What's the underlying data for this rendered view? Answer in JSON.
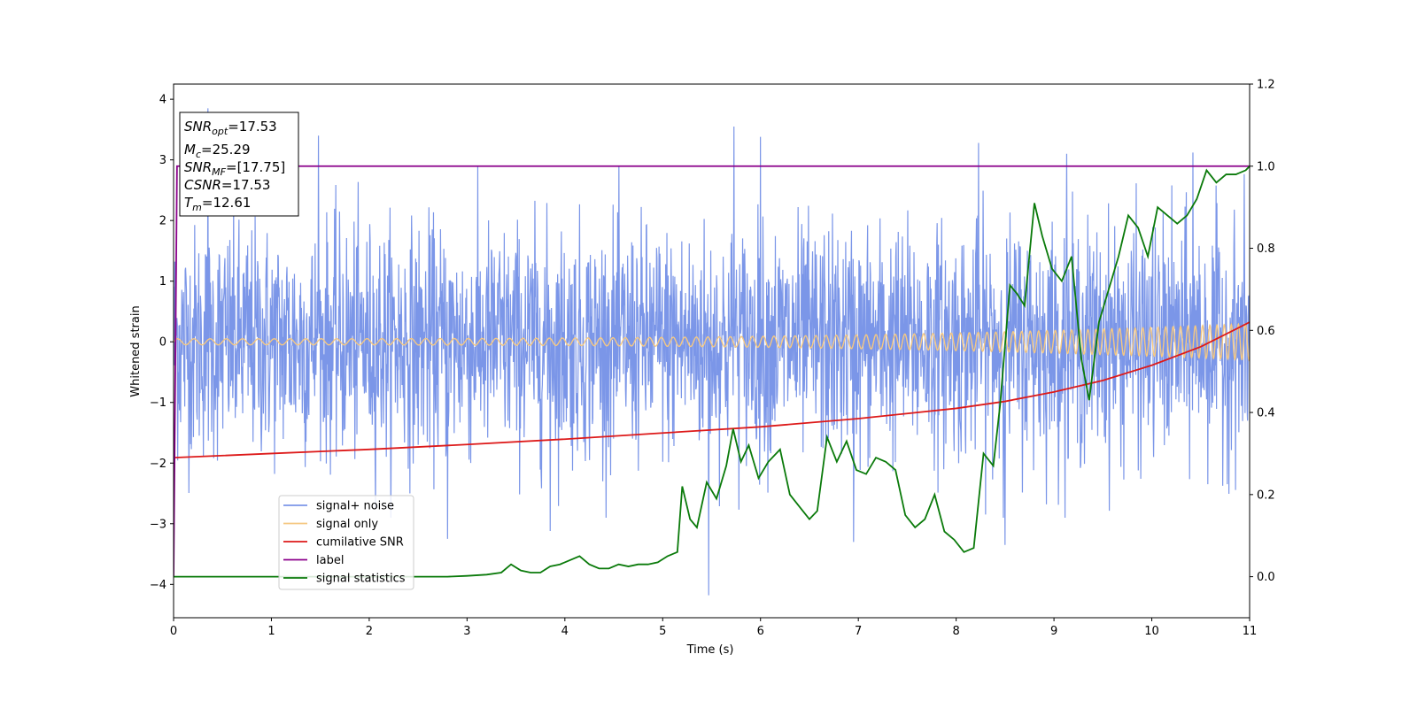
{
  "chart_data": {
    "type": "line",
    "title": "",
    "xlabel": "Time (s)",
    "ylabel": "Whitened strain",
    "ylabel_right": "",
    "xlim": [
      0,
      11
    ],
    "ylim": [
      -4.55,
      4.25
    ],
    "ylim_right": [
      -0.1,
      1.2
    ],
    "x_ticks": [
      "0",
      "1",
      "2",
      "3",
      "4",
      "5",
      "6",
      "7",
      "8",
      "9",
      "10",
      "11"
    ],
    "y_ticks": [
      "−4",
      "−3",
      "−2",
      "−1",
      "0",
      "1",
      "2",
      "3",
      "4"
    ],
    "y_ticks_right": [
      "0.0",
      "0.2",
      "0.4",
      "0.6",
      "0.8",
      "1.0",
      "1.2"
    ],
    "grid": false,
    "legend_position": "lower-left",
    "annotation": {
      "lines": [
        {
          "label": "SNR",
          "sub": "opt",
          "value": "=17.53"
        },
        {
          "label": "M",
          "sub": "c",
          "value": "=25.29"
        },
        {
          "label": "SNR",
          "sub": "MF",
          "value": "=[17.75]"
        },
        {
          "label": "CSNR",
          "sub": "",
          "value": "=17.53"
        },
        {
          "label": "T",
          "sub": "m",
          "value": "=12.61"
        }
      ]
    },
    "series": [
      {
        "name": "signal+ noise",
        "color": "#7b96e8",
        "axis": "left",
        "sampled": "noisy whitened strain, roughly ±2.5 with spikes up to ~3.9 and down to ~-4.2",
        "spikes": [
          [
            0.35,
            3.85
          ],
          [
            1.48,
            3.4
          ],
          [
            5.73,
            3.55
          ],
          [
            6.0,
            3.38
          ],
          [
            8.23,
            3.28
          ],
          [
            9.13,
            3.1
          ],
          [
            10.42,
            3.12
          ],
          [
            5.47,
            -4.18
          ],
          [
            2.8,
            -3.25
          ],
          [
            6.95,
            -3.3
          ],
          [
            3.85,
            -3.12
          ],
          [
            8.5,
            -3.35
          ]
        ]
      },
      {
        "name": "signal only",
        "color": "#f5c882",
        "axis": "left",
        "sampled": "chirp oscillation around 0, amplitude growing from ~0.05 to ~0.3"
      },
      {
        "name": "cumilative SNR",
        "color": "#dd1a1a",
        "axis": "right",
        "x": [
          0,
          1,
          2,
          3,
          4,
          5,
          6,
          7,
          8,
          8.5,
          9,
          9.5,
          10,
          10.5,
          11
        ],
        "y": [
          0.29,
          0.3,
          0.31,
          0.322,
          0.335,
          0.35,
          0.365,
          0.385,
          0.41,
          0.427,
          0.45,
          0.478,
          0.515,
          0.56,
          0.62
        ]
      },
      {
        "name": "label",
        "color": "#8b008b",
        "axis": "right",
        "x": [
          0.0,
          0.035,
          11
        ],
        "y": [
          0.0,
          1.0,
          1.0
        ]
      },
      {
        "name": "signal statistics",
        "color": "#0a7a0a",
        "axis": "right",
        "x": [
          0,
          0.5,
          1,
          1.5,
          2,
          2.5,
          2.8,
          3,
          3.2,
          3.35,
          3.45,
          3.55,
          3.65,
          3.75,
          3.85,
          3.95,
          4.05,
          4.15,
          4.25,
          4.35,
          4.45,
          4.55,
          4.65,
          4.75,
          4.85,
          4.95,
          5.05,
          5.15,
          5.2,
          5.28,
          5.35,
          5.45,
          5.55,
          5.65,
          5.72,
          5.8,
          5.88,
          5.98,
          6.08,
          6.2,
          6.3,
          6.4,
          6.5,
          6.58,
          6.68,
          6.78,
          6.88,
          6.98,
          7.08,
          7.18,
          7.28,
          7.38,
          7.48,
          7.58,
          7.68,
          7.78,
          7.88,
          7.98,
          8.08,
          8.18,
          8.28,
          8.38,
          8.45,
          8.55,
          8.62,
          8.7,
          8.8,
          8.88,
          8.98,
          9.08,
          9.18,
          9.28,
          9.36,
          9.46,
          9.56,
          9.66,
          9.76,
          9.86,
          9.96,
          10.06,
          10.16,
          10.26,
          10.36,
          10.46,
          10.56,
          10.66,
          10.76,
          10.86,
          10.96,
          11
        ],
        "y": [
          0.0,
          0.0,
          0.0,
          0.0,
          0.0,
          0.0,
          0.0,
          0.002,
          0.005,
          0.01,
          0.03,
          0.015,
          0.01,
          0.01,
          0.025,
          0.03,
          0.04,
          0.05,
          0.03,
          0.02,
          0.02,
          0.03,
          0.025,
          0.03,
          0.03,
          0.035,
          0.05,
          0.06,
          0.22,
          0.14,
          0.12,
          0.23,
          0.19,
          0.27,
          0.36,
          0.28,
          0.32,
          0.24,
          0.28,
          0.31,
          0.2,
          0.17,
          0.14,
          0.16,
          0.34,
          0.28,
          0.33,
          0.26,
          0.25,
          0.29,
          0.28,
          0.26,
          0.15,
          0.12,
          0.14,
          0.2,
          0.11,
          0.09,
          0.06,
          0.07,
          0.3,
          0.27,
          0.42,
          0.71,
          0.69,
          0.66,
          0.91,
          0.83,
          0.75,
          0.72,
          0.78,
          0.53,
          0.43,
          0.62,
          0.7,
          0.78,
          0.88,
          0.85,
          0.78,
          0.9,
          0.88,
          0.86,
          0.88,
          0.92,
          0.99,
          0.96,
          0.98,
          0.98,
          0.99,
          1.0
        ]
      }
    ]
  }
}
